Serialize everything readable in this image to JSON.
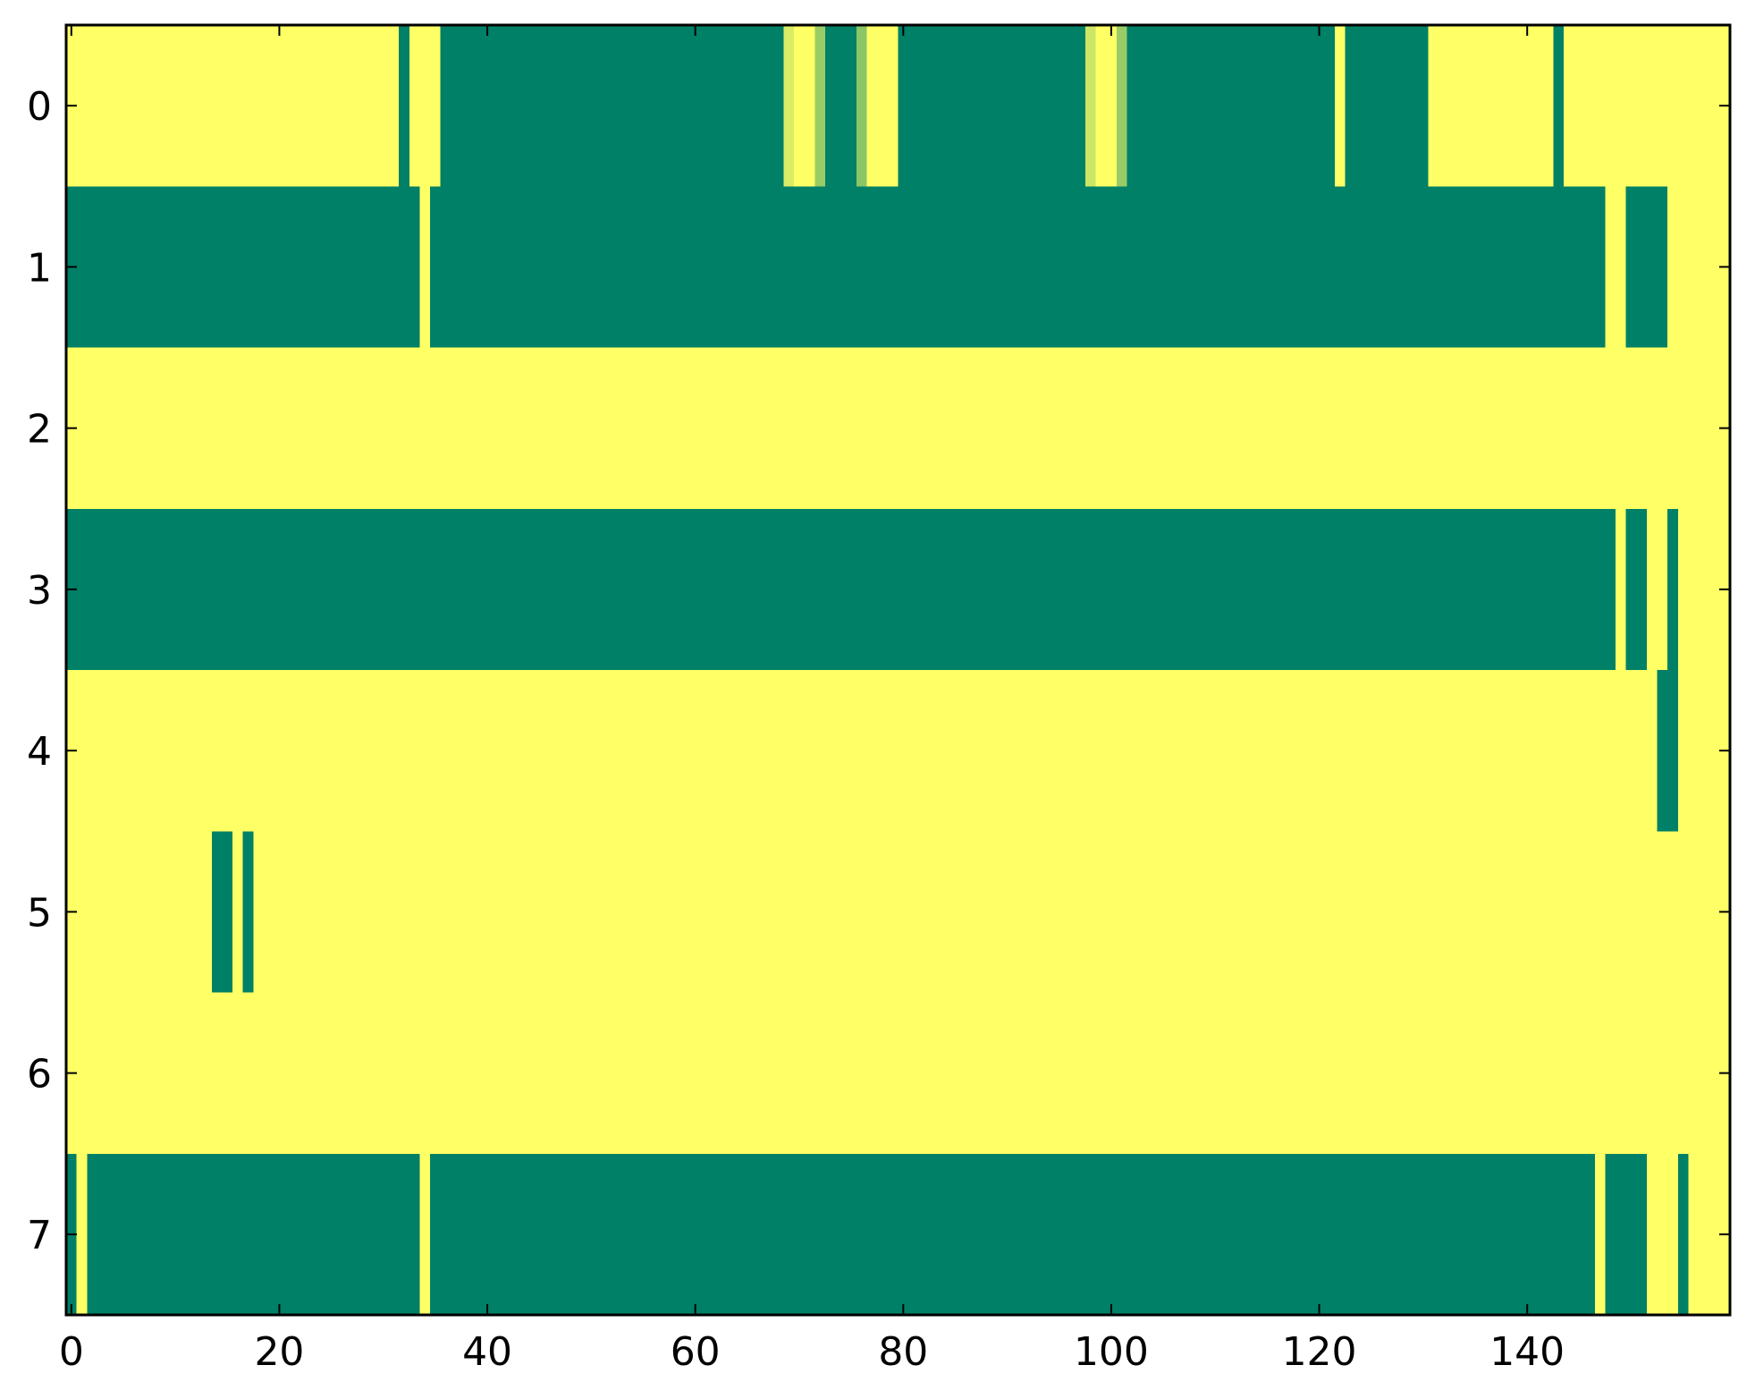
{
  "chart_data": {
    "type": "heatmap",
    "title": "",
    "xlabel": "",
    "ylabel": "",
    "xlim": [
      -0.5,
      159.5
    ],
    "ylim": [
      7.5,
      -0.5
    ],
    "x_ticks": [
      0,
      20,
      40,
      60,
      80,
      100,
      120,
      140
    ],
    "x_tick_labels": [
      "0",
      "20",
      "40",
      "60",
      "80",
      "100",
      "120",
      "140"
    ],
    "y_ticks": [
      0,
      1,
      2,
      3,
      4,
      5,
      6,
      7
    ],
    "y_tick_labels": [
      "0",
      "1",
      "2",
      "3",
      "4",
      "5",
      "6",
      "7"
    ],
    "n_cols": 160,
    "n_rows": 8,
    "colormap": "summer",
    "color_low": "#008066",
    "color_high": "#ffff66",
    "background_value": 1.0,
    "grid": false,
    "legend": "none",
    "runs_description": "Each run is [start_column, end_column_inclusive, value]; unlisted cells have the background value 1.0",
    "rows": [
      {
        "row": 0,
        "runs": [
          [
            32,
            32,
            0.0
          ],
          [
            36,
            68,
            0.0
          ],
          [
            69,
            69,
            0.85
          ],
          [
            72,
            72,
            0.6
          ],
          [
            73,
            75,
            0.0
          ],
          [
            76,
            76,
            0.55
          ],
          [
            80,
            97,
            0.0
          ],
          [
            98,
            98,
            0.8
          ],
          [
            101,
            101,
            0.6
          ],
          [
            102,
            121,
            0.0
          ],
          [
            123,
            130,
            0.0
          ],
          [
            143,
            143,
            0.0
          ]
        ]
      },
      {
        "row": 1,
        "runs": [
          [
            0,
            33,
            0.0
          ],
          [
            35,
            147,
            0.0
          ],
          [
            150,
            153,
            0.0
          ]
        ]
      },
      {
        "row": 2,
        "runs": []
      },
      {
        "row": 3,
        "runs": [
          [
            0,
            148,
            0.0
          ],
          [
            150,
            151,
            0.0
          ],
          [
            154,
            154,
            0.0
          ]
        ]
      },
      {
        "row": 4,
        "runs": [
          [
            153,
            154,
            0.0
          ]
        ]
      },
      {
        "row": 5,
        "runs": [
          [
            14,
            15,
            0.0
          ],
          [
            17,
            17,
            0.0
          ]
        ]
      },
      {
        "row": 6,
        "runs": []
      },
      {
        "row": 7,
        "runs": [
          [
            0,
            0,
            0.0
          ],
          [
            2,
            33,
            0.0
          ],
          [
            35,
            146,
            0.0
          ],
          [
            148,
            151,
            0.0
          ],
          [
            155,
            155,
            0.0
          ]
        ]
      }
    ]
  }
}
